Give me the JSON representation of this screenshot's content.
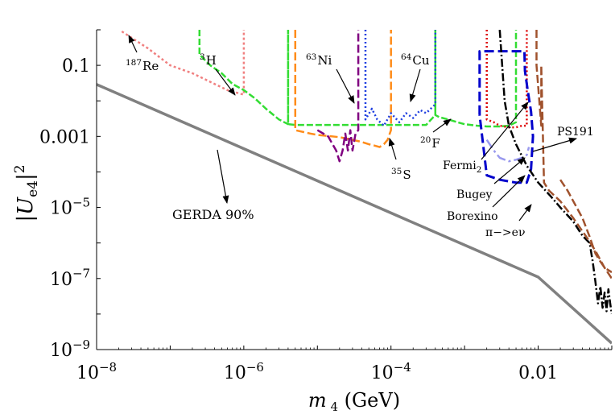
{
  "chart_data": {
    "type": "line",
    "xlabel": "m 4 (GeV)",
    "ylabel": "|U e4|2",
    "xscale": "log",
    "yscale": "log",
    "xlim": [
      1e-08,
      0.1
    ],
    "ylim": [
      1e-09,
      1.0
    ],
    "grid": false,
    "x_ticks": [
      {
        "value": 1e-08,
        "label": "10^-8"
      },
      {
        "value": 1e-06,
        "label": "10^-6"
      },
      {
        "value": 0.0001,
        "label": "10^-4"
      },
      {
        "value": 0.01,
        "label": "0.01"
      }
    ],
    "y_ticks": [
      {
        "value": 0.1,
        "label": "0.1"
      },
      {
        "value": 0.001,
        "label": "0.001"
      },
      {
        "value": 1e-05,
        "label": "10^-5"
      },
      {
        "value": 1e-07,
        "label": "10^-7"
      },
      {
        "value": 1e-09,
        "label": "10^-9"
      }
    ],
    "series": [
      {
        "name": "GERDA 90%",
        "color": "#808080",
        "dash": "",
        "width": 3.5,
        "x": [
          1e-08,
          1e-06,
          0.0001,
          0.01,
          0.1
        ],
        "y": [
          0.029,
          0.00045,
          7e-06,
          1.1e-07,
          1.5e-09
        ]
      },
      {
        "name": "187 Re",
        "color": "#f08080",
        "dash": "3,3",
        "width": 2.5,
        "x": [
          2.2e-08,
          5e-08,
          1e-07,
          2e-07,
          4e-07,
          6e-07,
          8e-07,
          1e-06,
          1e-06
        ],
        "y": [
          0.9,
          0.3,
          0.1,
          0.06,
          0.03,
          0.02,
          0.017,
          0.015,
          1.0
        ]
      },
      {
        "name": "3 H",
        "color": "#33dd33",
        "dash": "8,3",
        "width": 2.5,
        "x": [
          2.5e-07,
          2.5e-07,
          3.5e-07,
          5e-07,
          7e-07,
          1e-06,
          1.4e-06,
          2e-06,
          3e-06,
          4e-06,
          4e-06,
          4e-06,
          4e-06,
          5e-06,
          1e-05,
          3e-05,
          6e-05,
          0.0001,
          0.0002,
          0.0003,
          0.0004,
          0.0004,
          0.0004,
          0.00045,
          0.0006,
          0.0008,
          0.001,
          0.0015,
          0.002,
          0.003,
          0.004,
          0.005,
          0.005,
          0.005
        ],
        "y": [
          1.0,
          0.2,
          0.1,
          0.06,
          0.03,
          0.02,
          0.012,
          0.006,
          0.003,
          0.0022,
          1.0,
          1.0,
          0.0022,
          0.0021,
          0.0021,
          0.0021,
          0.0021,
          0.0021,
          0.0021,
          0.0021,
          0.004,
          1.0,
          0.004,
          0.0035,
          0.003,
          0.0025,
          0.0022,
          0.002,
          0.0019,
          0.0019,
          0.002,
          0.0025,
          0.1,
          1.0
        ]
      },
      {
        "name": "35 S",
        "color": "#ff8c1a",
        "dash": "10,4",
        "width": 2.5,
        "x": [
          5e-06,
          5e-06,
          5e-06,
          8e-06,
          1e-05,
          2e-05,
          3e-05,
          4e-05,
          5e-05,
          6e-05,
          7e-05,
          8e-05,
          9e-05,
          0.0001,
          0.0001,
          0.0001
        ],
        "y": [
          1.0,
          0.1,
          0.0015,
          0.0012,
          0.0011,
          0.00095,
          0.0008,
          0.0007,
          0.0006,
          0.00055,
          0.0005,
          0.0006,
          0.0008,
          0.0015,
          0.1,
          1.0
        ]
      },
      {
        "name": "63 Ni",
        "color": "#800080",
        "dash": "10,4",
        "width": 2.5,
        "x": [
          1e-05,
          1.4e-05,
          1.8e-05,
          2e-05,
          2.2e-05,
          2.4e-05,
          2.6e-05,
          2.8e-05,
          3e-05,
          3.3e-05,
          3.6e-05,
          3.6e-05
        ],
        "y": [
          0.0015,
          0.001,
          0.0004,
          0.0002,
          0.0004,
          0.0012,
          0.0004,
          0.0015,
          0.0004,
          0.0012,
          0.0015,
          1.0
        ]
      },
      {
        "name": "64 Cu",
        "color": "#1f3fe0",
        "dash": "2,3",
        "width": 2.5,
        "x": [
          4.5e-05,
          4.5e-05,
          5.5e-05,
          6.5e-05,
          8e-05,
          0.0001,
          0.00013,
          0.00016,
          0.0002,
          0.00025,
          0.0003,
          0.0004,
          0.0004
        ],
        "y": [
          1.0,
          0.003,
          0.006,
          0.003,
          0.002,
          0.0045,
          0.0025,
          0.0045,
          0.0033,
          0.0055,
          0.0045,
          0.008,
          1.0
        ]
      },
      {
        "name": "20 F",
        "color": "#dd0000",
        "dash": "2,3",
        "width": 2.5,
        "x": [
          0.002,
          0.002,
          0.0025,
          0.003,
          0.004,
          0.005,
          0.006,
          0.007,
          0.007,
          0.007
        ],
        "y": [
          1.0,
          0.003,
          0.0025,
          0.002,
          0.0018,
          0.0018,
          0.002,
          0.002,
          0.1,
          1.0
        ]
      },
      {
        "name": "Fermi2",
        "color": "#0000cc",
        "dash": "12,5",
        "width": 3,
        "x": [
          0.0016,
          0.0016,
          0.0035,
          0.0065,
          0.0066,
          0.0072,
          0.008,
          0.0085,
          0.008,
          0.007,
          0.005,
          0.003,
          0.002,
          0.0016
        ],
        "y": [
          0.004,
          0.25,
          0.25,
          0.25,
          0.07,
          0.02,
          0.005,
          0.001,
          0.00012,
          5e-05,
          5e-05,
          6e-05,
          8e-05,
          0.004
        ]
      },
      {
        "name": "Bugey",
        "color": "#9999ee",
        "dash": "12,4,3,4",
        "width": 2.5,
        "x": [
          0.002,
          0.0025,
          0.003,
          0.004,
          0.005,
          0.006,
          0.007,
          0.0075
        ],
        "y": [
          0.0008,
          0.0004,
          0.00025,
          0.0002,
          0.00022,
          0.00025,
          0.0003,
          0.0005
        ]
      },
      {
        "name": "Borexino",
        "color": "#000000",
        "dash": "10,3,2,3",
        "width": 2.5,
        "x": [
          0.003,
          0.0035,
          0.004,
          0.005,
          0.007,
          0.01,
          0.015,
          0.02,
          0.03,
          0.04,
          0.05,
          0.055,
          0.06,
          0.065,
          0.07,
          0.075,
          0.08,
          0.085,
          0.09,
          0.095,
          0.1
        ],
        "y": [
          1.0,
          0.01,
          0.002,
          0.0006,
          0.00015,
          5e-05,
          2e-05,
          1e-05,
          4e-06,
          1.6e-06,
          1e-06,
          3e-07,
          8e-08,
          2e-08,
          6e-08,
          1.5e-08,
          4e-08,
          1.2e-08,
          5e-08,
          2e-08,
          1e-08
        ]
      },
      {
        "name": "PS191",
        "color": "#a0522d",
        "dash": "10,4",
        "width": 2.5,
        "x": [
          0.0095,
          0.0095,
          0.011,
          0.011,
          0.012,
          0.014,
          0.02,
          0.03,
          0.045,
          0.06,
          0.08,
          0.1
        ],
        "y": [
          1.0,
          0.1,
          0.002,
          0.1,
          5e-05,
          3e-05,
          1.5e-05,
          5e-06,
          1.5e-06,
          6e-07,
          2e-07,
          1e-07
        ]
      },
      {
        "name": "PS191 b",
        "color": "#a0522d",
        "dash": "10,4",
        "width": 2.5,
        "x": [
          0.02,
          0.025,
          0.03,
          0.04,
          0.05,
          0.06,
          0.07,
          0.08,
          0.1
        ],
        "y": [
          6e-05,
          3e-05,
          1.5e-05,
          5e-06,
          1.5e-06,
          5e-07,
          3e-07,
          2e-07,
          1.5e-07
        ]
      }
    ],
    "annotations": [
      {
        "id": "re",
        "base": "Re",
        "sup": "187"
      },
      {
        "id": "h",
        "base": "H",
        "sup": "3"
      },
      {
        "id": "ni",
        "base": "Ni",
        "sup": "63"
      },
      {
        "id": "cu",
        "base": "Cu",
        "sup": "64"
      },
      {
        "id": "f",
        "base": "F",
        "sup": "20"
      },
      {
        "id": "s",
        "base": "S",
        "sup": "35"
      },
      {
        "id": "fermi",
        "base": "Fermi",
        "sub": "2"
      },
      {
        "id": "ps191",
        "base": "PS191"
      },
      {
        "id": "bugey",
        "base": "Bugey"
      },
      {
        "id": "borexino",
        "base": "Borexino"
      },
      {
        "id": "pien",
        "base": "π−>eν"
      },
      {
        "id": "gerda",
        "base": "GERDA 90%"
      }
    ]
  }
}
